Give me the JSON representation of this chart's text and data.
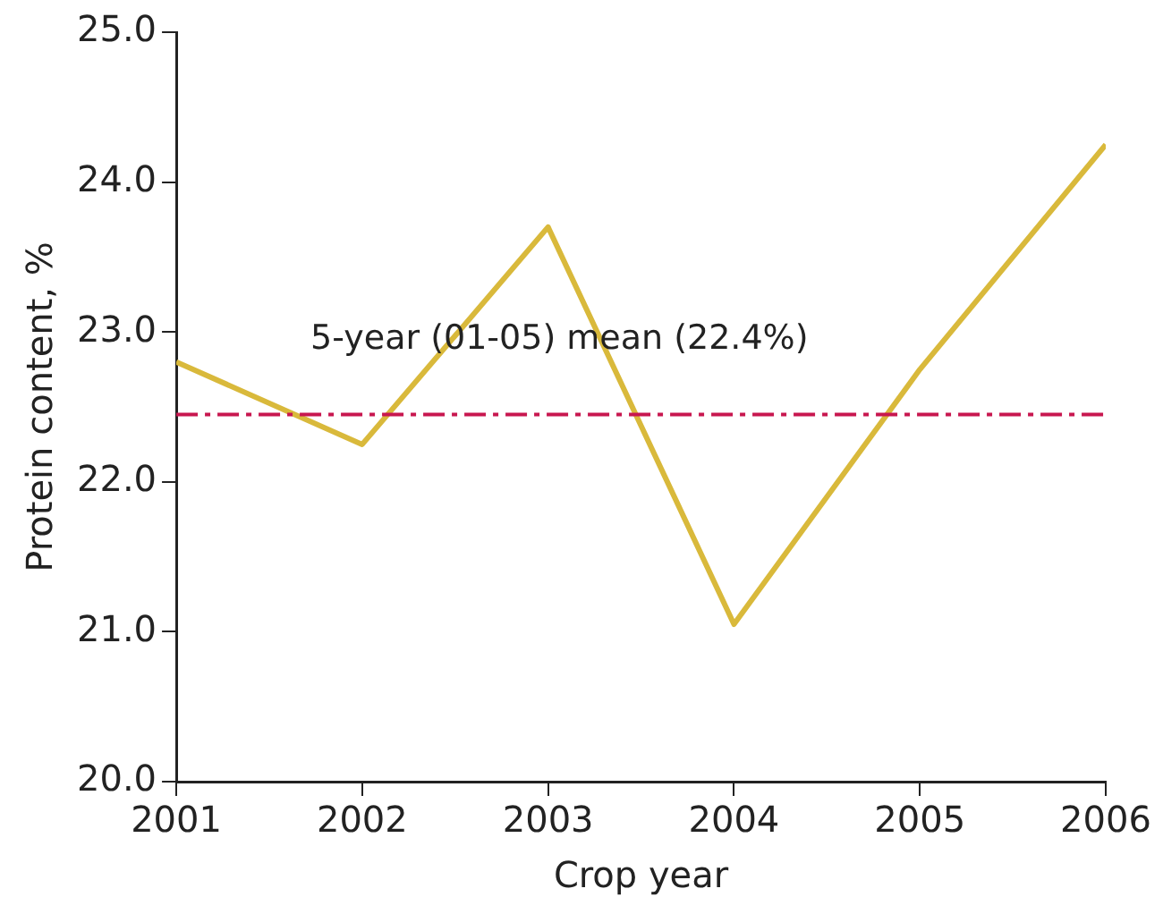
{
  "chart_data": {
    "type": "line",
    "xlabel": "Crop year",
    "ylabel": "Protein content, %",
    "x": [
      2001,
      2002,
      2003,
      2004,
      2005,
      2006
    ],
    "series": [
      {
        "color": "#d9b93b",
        "values": [
          22.8,
          22.25,
          23.7,
          21.05,
          22.75,
          24.25
        ]
      }
    ],
    "xlim": [
      2001,
      2006
    ],
    "xticks": [
      2001,
      2002,
      2003,
      2004,
      2005,
      2006
    ],
    "ylim": [
      20,
      25
    ],
    "yticks": [
      {
        "value": 20,
        "label": "20.0"
      },
      {
        "value": 21,
        "label": "21.0"
      },
      {
        "value": 22,
        "label": "22.0"
      },
      {
        "value": 23,
        "label": "23.0"
      },
      {
        "value": 24,
        "label": "24.0"
      },
      {
        "value": 25,
        "label": "25.0"
      }
    ],
    "ref_lines": [
      {
        "axis": "y",
        "value": 22.45,
        "label": "5-year (01-05) mean (22.4%)",
        "color": "#c8174f",
        "line_style": "dashdot"
      }
    ],
    "grid": false,
    "legend": false,
    "marker": "none"
  }
}
